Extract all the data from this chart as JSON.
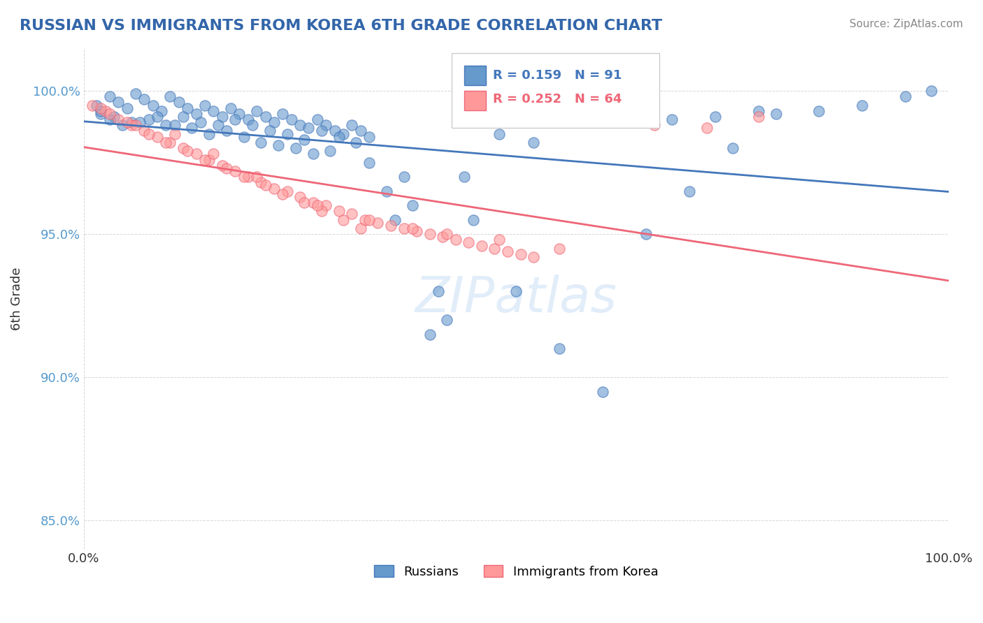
{
  "title": "RUSSIAN VS IMMIGRANTS FROM KOREA 6TH GRADE CORRELATION CHART",
  "source_text": "Source: ZipAtlas.com",
  "xlabel": "",
  "ylabel": "6th Grade",
  "watermark": "ZIPatlas",
  "xlim": [
    0.0,
    100.0
  ],
  "ylim": [
    84.0,
    101.5
  ],
  "yticks": [
    85.0,
    90.0,
    95.0,
    100.0
  ],
  "ytick_labels": [
    "85.0%",
    "90.0%",
    "95.0%",
    "100.0%"
  ],
  "xticks": [
    0.0,
    100.0
  ],
  "xtick_labels": [
    "0.0%",
    "100.0%"
  ],
  "legend_r1": "R = 0.159",
  "legend_n1": "N = 91",
  "legend_r2": "R = 0.252",
  "legend_n2": "N = 64",
  "color_russian": "#6699CC",
  "color_korea": "#FF9999",
  "color_trend_russian": "#4477BB",
  "color_trend_korea": "#EE6677",
  "background_color": "#FFFFFF",
  "title_color": "#3366AA",
  "source_color": "#888888",
  "russians_x": [
    1.5,
    2.0,
    3.0,
    4.0,
    5.0,
    6.0,
    7.0,
    8.0,
    9.0,
    10.0,
    11.0,
    12.0,
    13.0,
    14.0,
    15.0,
    16.0,
    17.0,
    18.0,
    19.0,
    20.0,
    21.0,
    22.0,
    23.0,
    24.0,
    25.0,
    26.0,
    27.0,
    28.0,
    29.0,
    30.0,
    31.0,
    32.0,
    33.0,
    35.0,
    37.0,
    40.0,
    42.0,
    45.0,
    50.0,
    55.0,
    60.0,
    65.0,
    70.0,
    75.0,
    80.0,
    85.0,
    90.0,
    95.0,
    98.0,
    2.0,
    3.5,
    5.5,
    7.5,
    9.5,
    11.5,
    13.5,
    15.5,
    17.5,
    19.5,
    21.5,
    23.5,
    25.5,
    27.5,
    29.5,
    31.5,
    3.0,
    4.5,
    6.5,
    8.5,
    10.5,
    12.5,
    14.5,
    16.5,
    18.5,
    20.5,
    22.5,
    24.5,
    26.5,
    28.5,
    33.0,
    36.0,
    38.0,
    41.0,
    44.0,
    48.0,
    52.0,
    57.0,
    62.0,
    68.0,
    73.0,
    78.0
  ],
  "russians_y": [
    99.5,
    99.2,
    99.8,
    99.6,
    99.4,
    99.9,
    99.7,
    99.5,
    99.3,
    99.8,
    99.6,
    99.4,
    99.2,
    99.5,
    99.3,
    99.1,
    99.4,
    99.2,
    99.0,
    99.3,
    99.1,
    98.9,
    99.2,
    99.0,
    98.8,
    98.7,
    99.0,
    98.8,
    98.6,
    98.5,
    98.8,
    98.6,
    98.4,
    96.5,
    97.0,
    91.5,
    92.0,
    95.5,
    93.0,
    91.0,
    89.5,
    95.0,
    96.5,
    98.0,
    99.2,
    99.3,
    99.5,
    99.8,
    100.0,
    99.3,
    99.1,
    98.9,
    99.0,
    98.8,
    99.1,
    98.9,
    98.8,
    99.0,
    98.8,
    98.6,
    98.5,
    98.3,
    98.6,
    98.4,
    98.2,
    99.0,
    98.8,
    98.9,
    99.1,
    98.8,
    98.7,
    98.5,
    98.6,
    98.4,
    98.2,
    98.1,
    98.0,
    97.8,
    97.9,
    97.5,
    95.5,
    96.0,
    93.0,
    97.0,
    98.5,
    98.2,
    99.0,
    99.2,
    99.0,
    99.1,
    99.3
  ],
  "korea_x": [
    1.0,
    2.5,
    4.0,
    5.5,
    7.0,
    8.5,
    10.0,
    11.5,
    13.0,
    14.5,
    16.0,
    17.5,
    19.0,
    20.5,
    22.0,
    23.5,
    25.0,
    26.5,
    28.0,
    29.5,
    31.0,
    32.5,
    34.0,
    35.5,
    37.0,
    38.5,
    40.0,
    41.5,
    43.0,
    44.5,
    46.0,
    47.5,
    49.0,
    50.5,
    52.0,
    3.0,
    5.0,
    7.5,
    9.5,
    12.0,
    14.0,
    16.5,
    18.5,
    21.0,
    23.0,
    25.5,
    27.5,
    30.0,
    32.0,
    2.0,
    6.0,
    10.5,
    15.0,
    20.0,
    27.0,
    33.0,
    38.0,
    42.0,
    48.0,
    55.0,
    62.0,
    66.0,
    72.0,
    78.0
  ],
  "korea_y": [
    99.5,
    99.3,
    99.0,
    98.8,
    98.6,
    98.4,
    98.2,
    98.0,
    97.8,
    97.6,
    97.4,
    97.2,
    97.0,
    96.8,
    96.6,
    96.5,
    96.3,
    96.1,
    96.0,
    95.8,
    95.7,
    95.5,
    95.4,
    95.3,
    95.2,
    95.1,
    95.0,
    94.9,
    94.8,
    94.7,
    94.6,
    94.5,
    94.4,
    94.3,
    94.2,
    99.2,
    98.9,
    98.5,
    98.2,
    97.9,
    97.6,
    97.3,
    97.0,
    96.7,
    96.4,
    96.1,
    95.8,
    95.5,
    95.2,
    99.4,
    98.8,
    98.5,
    97.8,
    97.0,
    96.0,
    95.5,
    95.2,
    95.0,
    94.8,
    94.5,
    99.0,
    98.8,
    98.7,
    99.1
  ]
}
